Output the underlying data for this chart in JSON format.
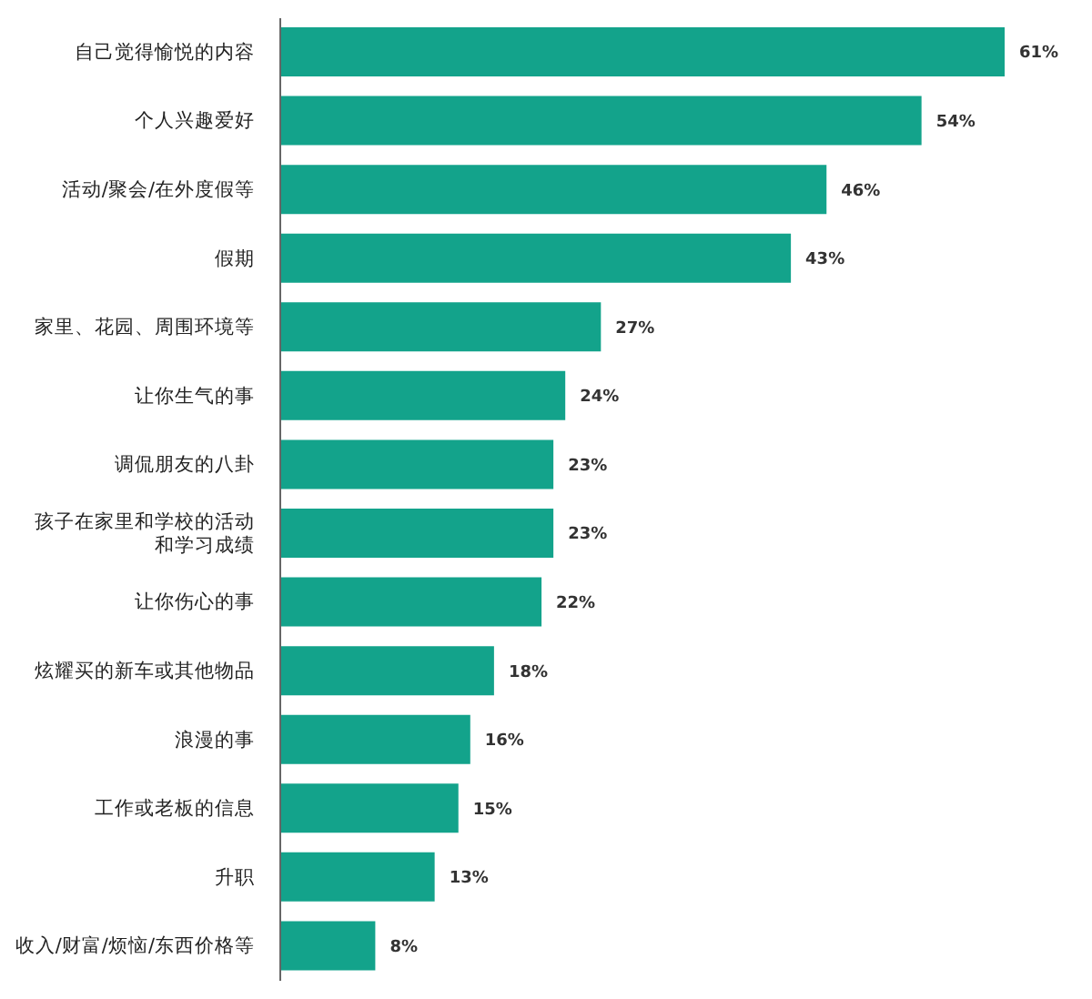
{
  "chart_data": {
    "type": "bar",
    "orientation": "horizontal",
    "categories": [
      "自己觉得愉悦的内容",
      "个人兴趣爱好",
      "活动/聚会/在外度假等",
      "假期",
      "家里、花园、周围环境等",
      "让你生气的事",
      "调侃朋友的八卦",
      "孩子在家里和学校的活动和学习成绩",
      "让你伤心的事",
      "炫耀买的新车或其他物品",
      "浪漫的事",
      "工作或老板的信息",
      "升职",
      "收入/财富/烦恼/东西价格等"
    ],
    "values": [
      61,
      54,
      46,
      43,
      27,
      24,
      23,
      23,
      22,
      18,
      16,
      15,
      13,
      8
    ],
    "value_labels": [
      "61%",
      "54%",
      "46%",
      "43%",
      "27%",
      "24%",
      "23%",
      "23%",
      "22%",
      "18%",
      "16%",
      "15%",
      "13%",
      "8%"
    ],
    "color": "#13a38b",
    "grid": false,
    "legend": false
  }
}
